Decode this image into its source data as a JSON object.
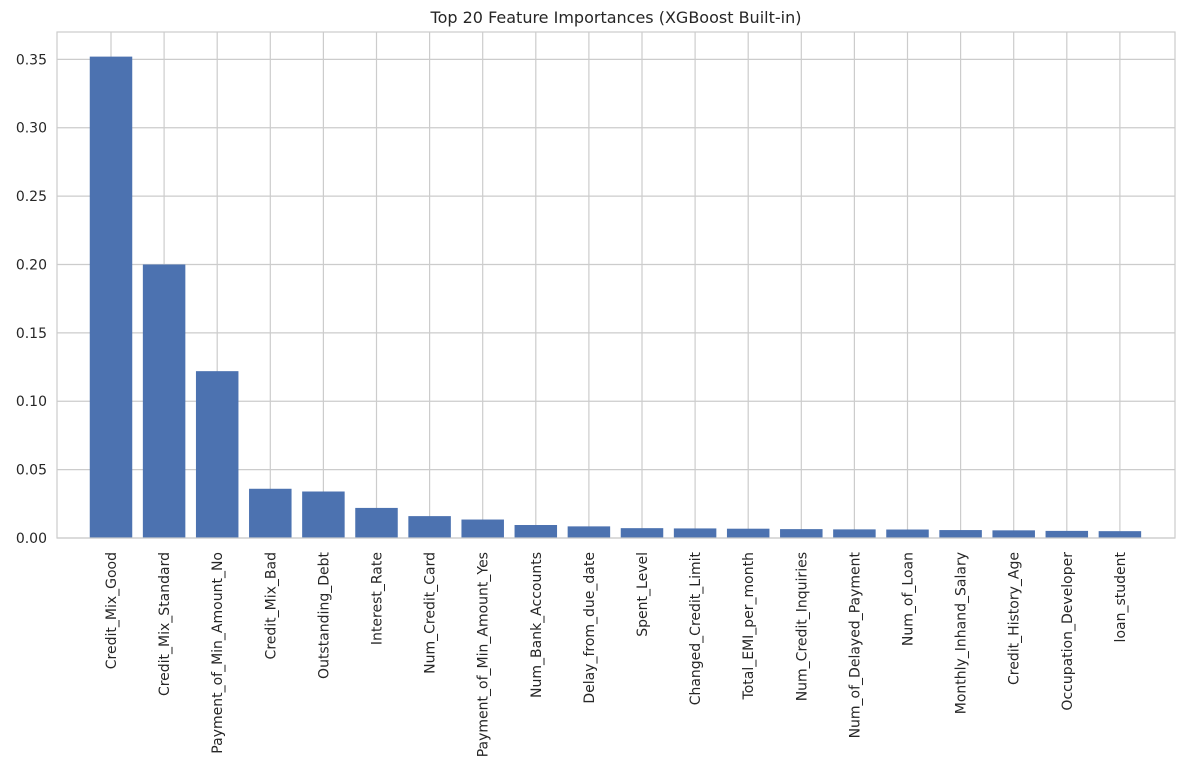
{
  "chart_data": {
    "type": "bar",
    "title": "Top 20 Feature Importances (XGBoost Built-in)",
    "xlabel": "",
    "ylabel": "",
    "categories": [
      "Credit_Mix_Good",
      "Credit_Mix_Standard",
      "Payment_of_Min_Amount_No",
      "Credit_Mix_Bad",
      "Outstanding_Debt",
      "Interest_Rate",
      "Num_Credit_Card",
      "Payment_of_Min_Amount_Yes",
      "Num_Bank_Accounts",
      "Delay_from_due_date",
      "Spent_Level",
      "Changed_Credit_Limit",
      "Total_EMI_per_month",
      "Num_Credit_Inquiries",
      "Num_of_Delayed_Payment",
      "Num_of_Loan",
      "Monthly_Inhand_Salary",
      "Credit_History_Age",
      "Occupation_Developer",
      "loan_student"
    ],
    "values": [
      0.352,
      0.2,
      0.122,
      0.036,
      0.034,
      0.022,
      0.016,
      0.0135,
      0.0095,
      0.0085,
      0.0072,
      0.007,
      0.0068,
      0.0065,
      0.0063,
      0.0062,
      0.0058,
      0.0056,
      0.0052,
      0.005
    ],
    "yticks": [
      "0.00",
      "0.05",
      "0.10",
      "0.15",
      "0.20",
      "0.25",
      "0.30",
      "0.35"
    ],
    "ylim": [
      0,
      0.37
    ],
    "grid": true,
    "colors": {
      "bar": "#4c72b0",
      "grid": "#cccccc"
    }
  }
}
